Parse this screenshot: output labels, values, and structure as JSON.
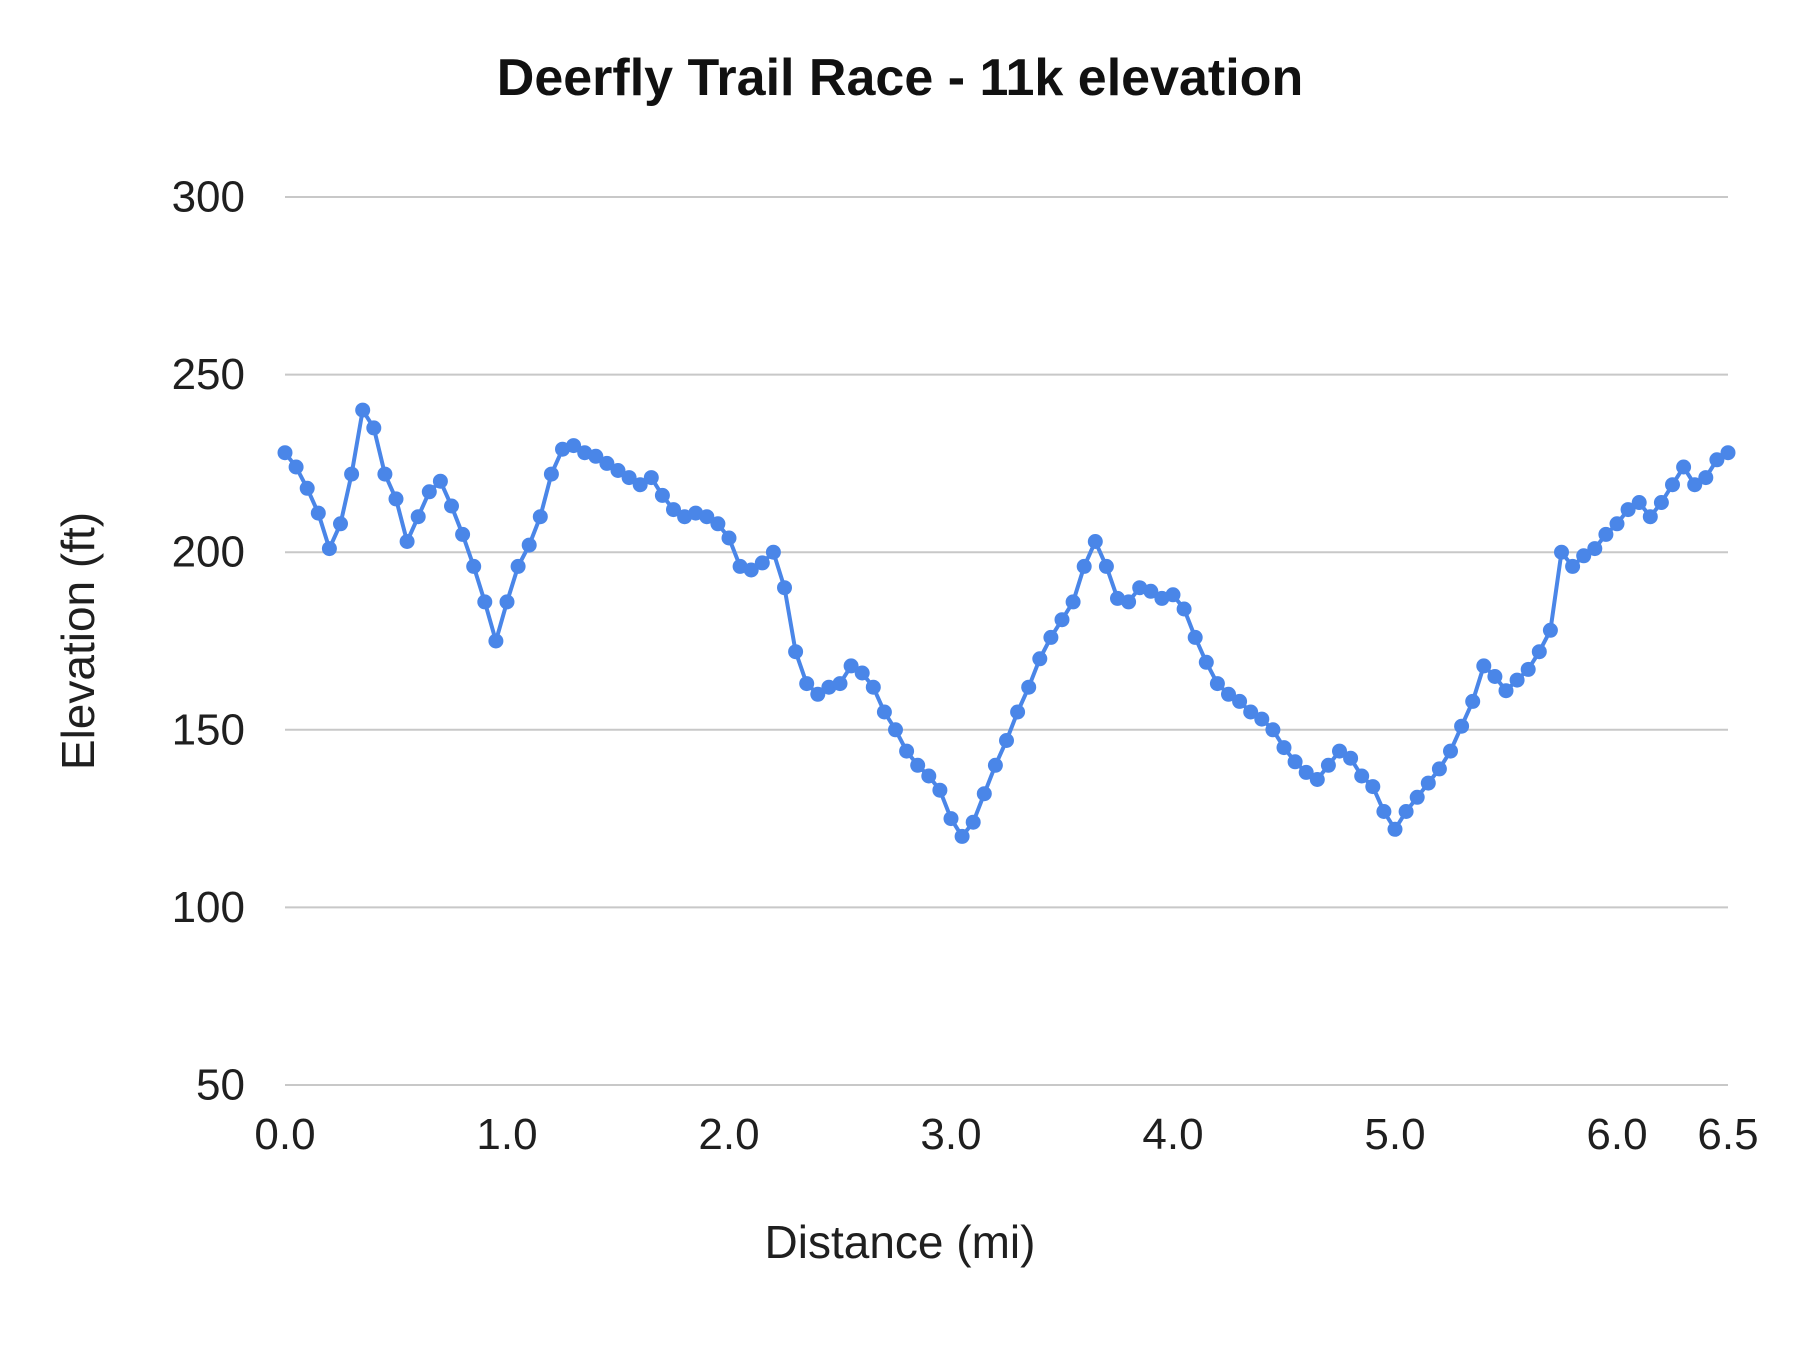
{
  "chart": {
    "title": "Deerfly Trail Race - 11k elevation",
    "xlabel": "Distance (mi)",
    "ylabel": "Elevation (ft)"
  },
  "chart_data": {
    "type": "line",
    "title": "Deerfly Trail Race - 11k elevation",
    "xlabel": "Distance (mi)",
    "ylabel": "Elevation (ft)",
    "xlim": [
      0,
      6.5
    ],
    "ylim": [
      50,
      300
    ],
    "x_ticks": [
      0,
      1,
      2,
      3,
      4,
      5,
      6,
      6.5
    ],
    "x_tick_labels": [
      "0.0",
      "1.0",
      "2.0",
      "3.0",
      "4.0",
      "5.0",
      "6.0",
      "6.5"
    ],
    "y_ticks": [
      50,
      100,
      150,
      200,
      250,
      300
    ],
    "grid": "horizontal",
    "grid_color": "#c8c8c8",
    "legend": "none",
    "marker": "circle",
    "line_color": "#4a86e8",
    "series": [
      {
        "name": "Elevation",
        "x_start": 0,
        "x_step": 0.05,
        "y": [
          228,
          224,
          218,
          211,
          201,
          208,
          222,
          240,
          235,
          222,
          215,
          203,
          210,
          217,
          220,
          213,
          205,
          196,
          186,
          175,
          186,
          196,
          202,
          210,
          222,
          229,
          230,
          228,
          227,
          225,
          223,
          221,
          219,
          221,
          216,
          212,
          210,
          211,
          210,
          208,
          204,
          196,
          195,
          197,
          200,
          190,
          172,
          163,
          160,
          162,
          163,
          168,
          166,
          162,
          155,
          150,
          144,
          140,
          137,
          133,
          125,
          120,
          124,
          132,
          140,
          147,
          155,
          162,
          170,
          176,
          181,
          186,
          196,
          203,
          196,
          187,
          186,
          190,
          189,
          187,
          188,
          184,
          176,
          169,
          163,
          160,
          158,
          155,
          153,
          150,
          145,
          141,
          138,
          136,
          140,
          144,
          142,
          137,
          134,
          127,
          122,
          127,
          131,
          135,
          139,
          144,
          151,
          158,
          168,
          165,
          161,
          164,
          167,
          172,
          178,
          200,
          196,
          199,
          201,
          205,
          208,
          212,
          214,
          210,
          214,
          219,
          224,
          219,
          221,
          226,
          228
        ]
      }
    ]
  }
}
